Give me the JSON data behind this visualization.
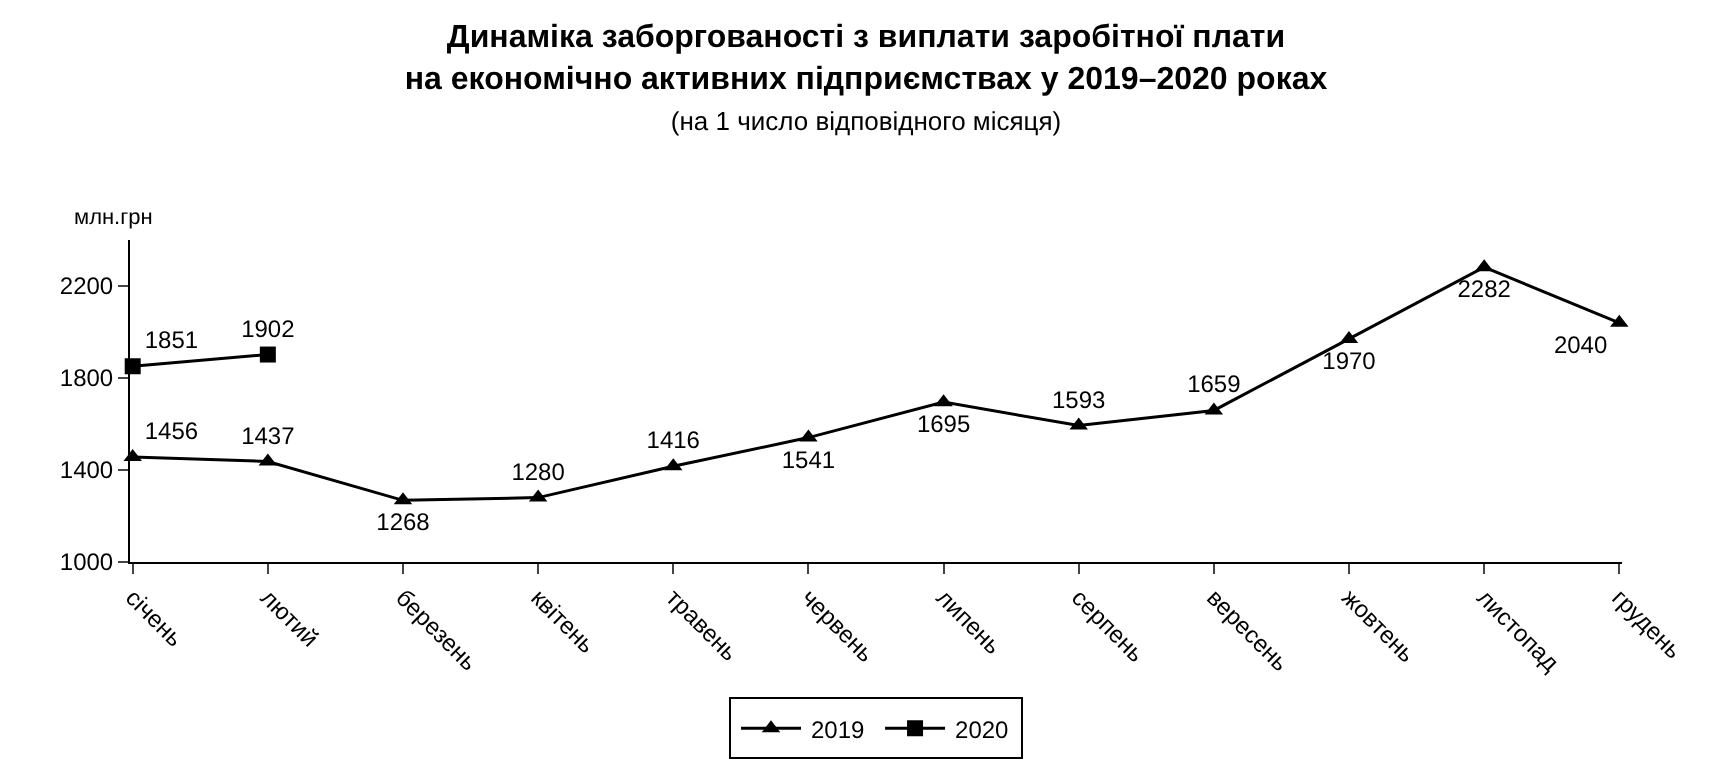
{
  "chart_data": {
    "type": "line",
    "title": "Динаміка заборгованості з виплати заробітної плати\nна економічно активних підприємствах у 2019–2020 роках",
    "subtitle": "(на 1 число відповідного місяця)",
    "ylabel": "млн.грн",
    "categories": [
      "січень",
      "лютий",
      "березень",
      "квітень",
      "травень",
      "червень",
      "липень",
      "серпень",
      "вересень",
      "жовтень",
      "листопад",
      "грудень"
    ],
    "series": [
      {
        "name": "2019",
        "color": "#000000",
        "marker": "triangle",
        "values": [
          1456,
          1437,
          1268,
          1280,
          1416,
          1541,
          1695,
          1593,
          1659,
          1970,
          2282,
          2040
        ]
      },
      {
        "name": "2020",
        "color": "#000000",
        "marker": "square",
        "values": [
          1851,
          1902,
          null,
          null,
          null,
          null,
          null,
          null,
          null,
          null,
          null,
          null
        ]
      }
    ],
    "ylim": [
      1000,
      2400
    ],
    "yticks": [
      1000,
      1400,
      1800,
      2200
    ],
    "legend": "bottom",
    "data_labels": true,
    "line_style": "solid"
  }
}
